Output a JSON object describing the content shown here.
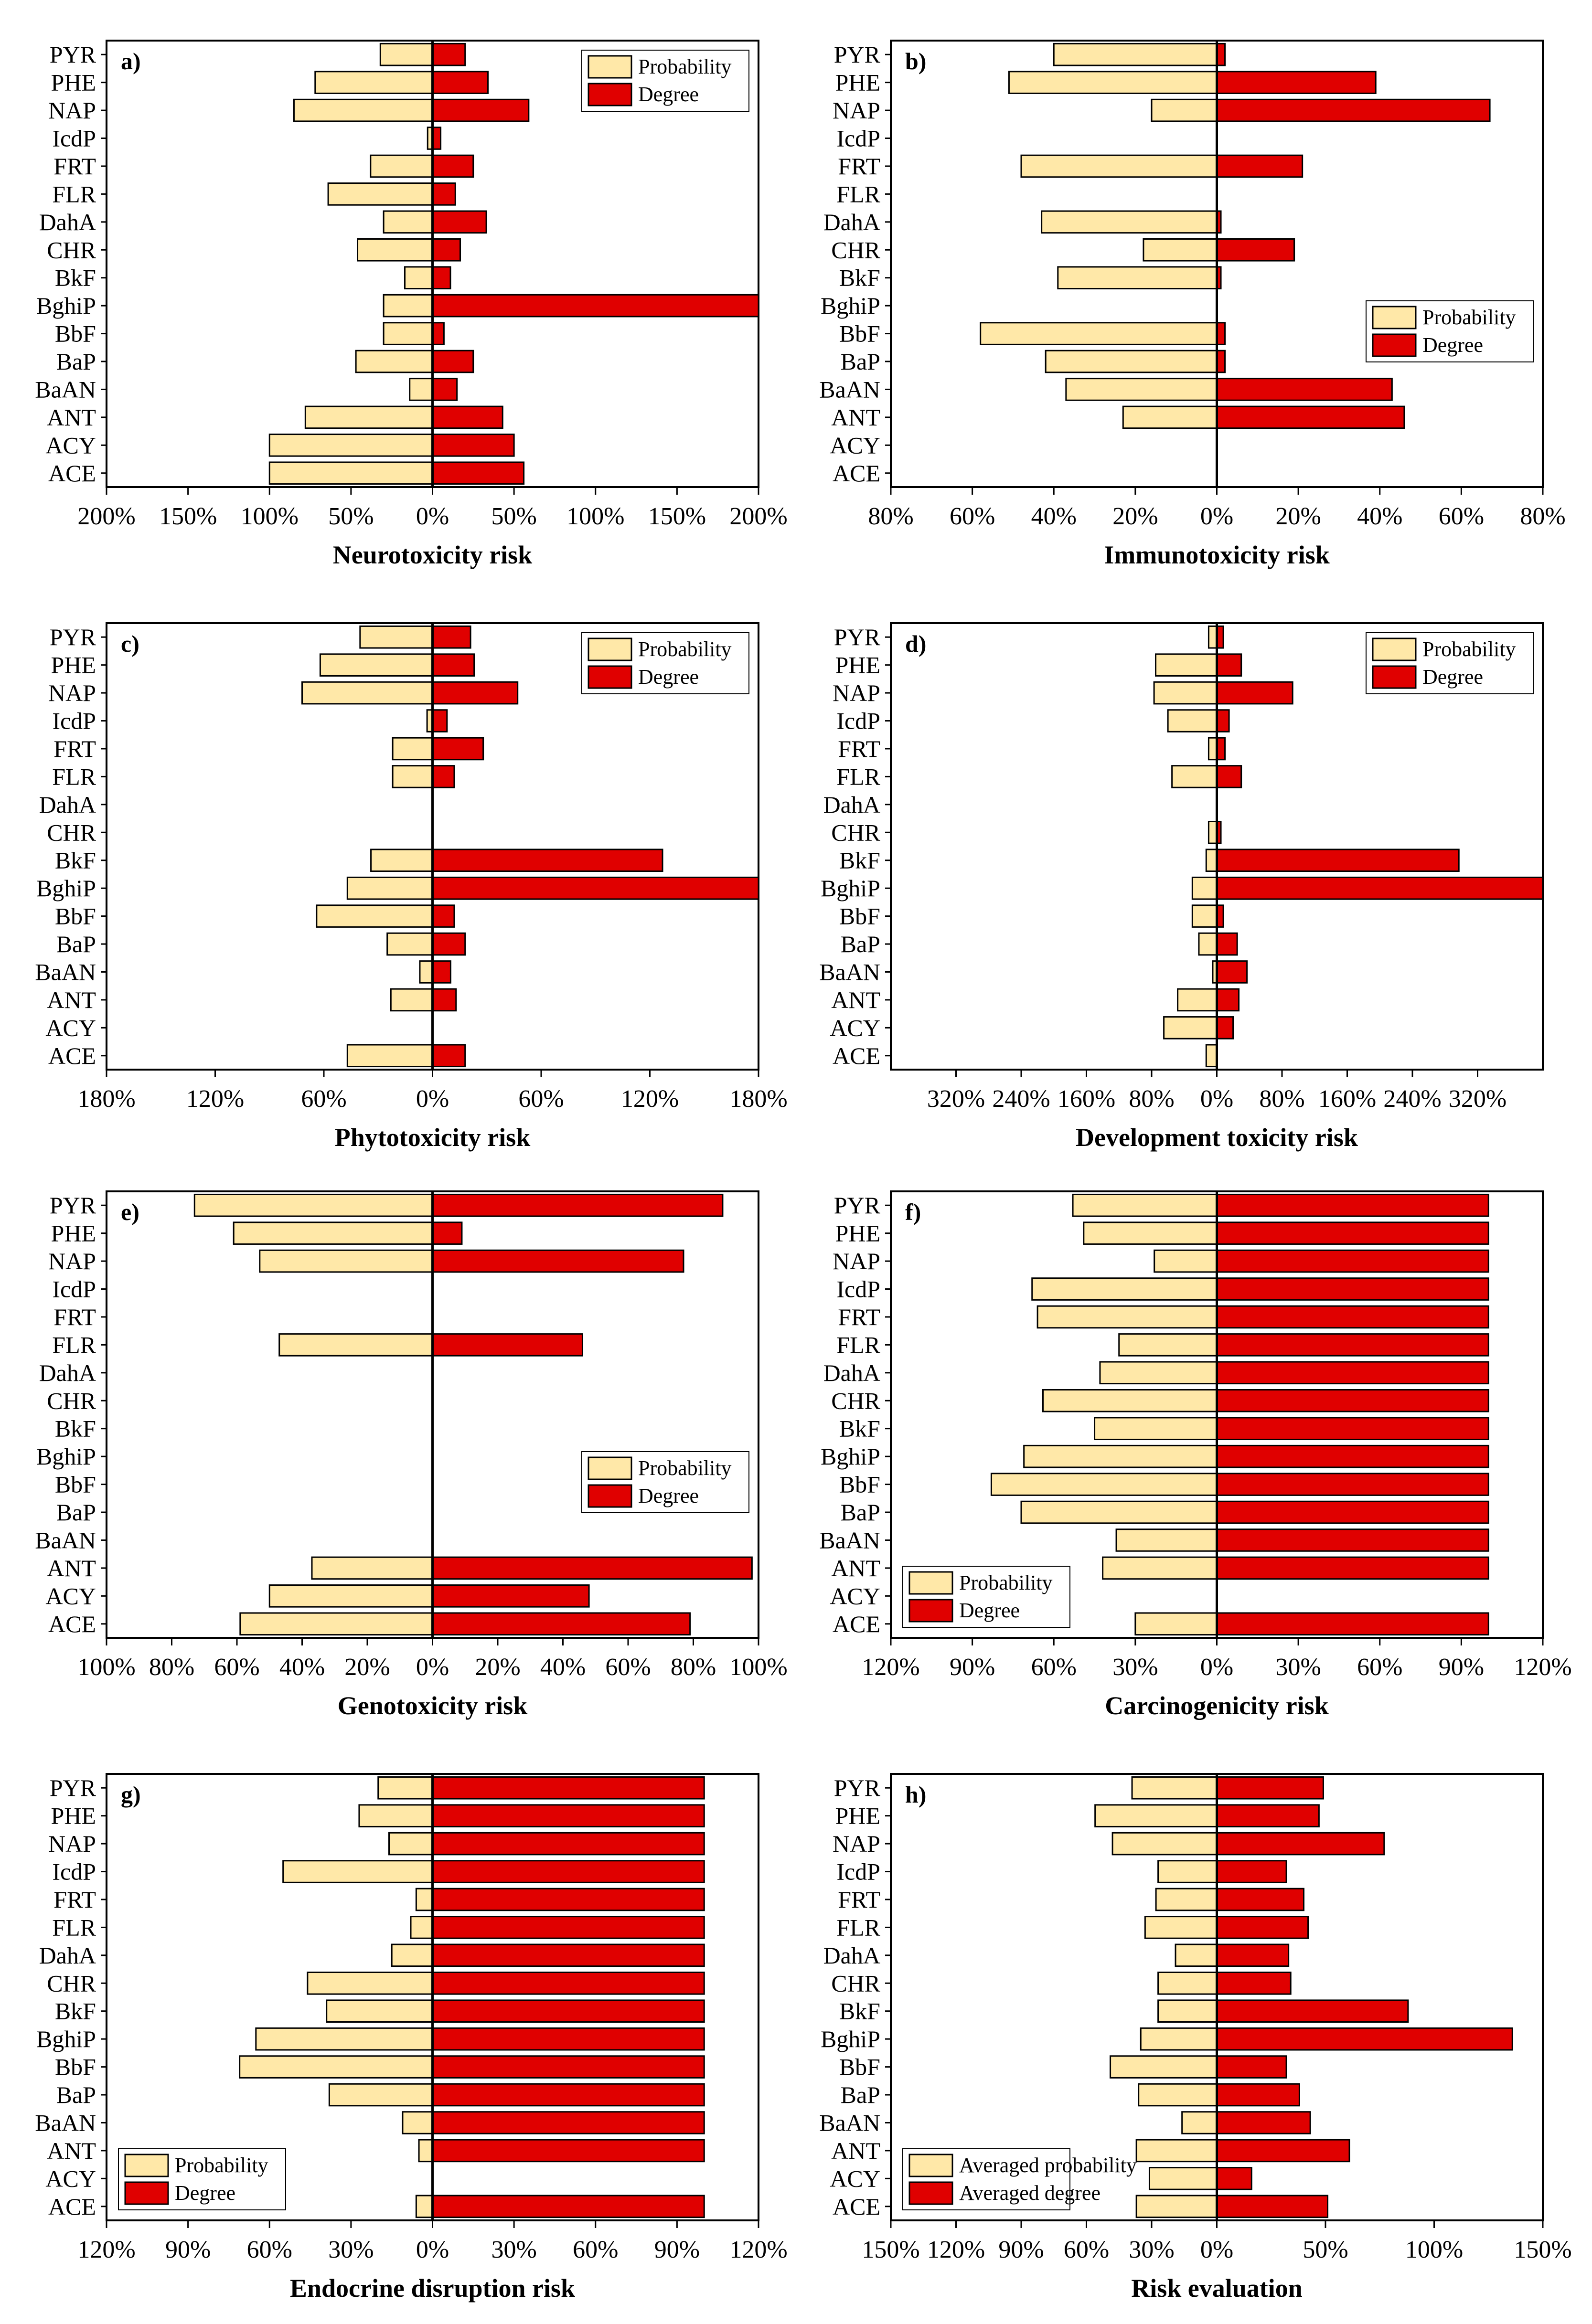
{
  "figure": {
    "background": "#ffffff"
  },
  "colors": {
    "probability": "#FFE8A8",
    "degree": "#E00000",
    "outline": "#000000"
  },
  "chart_data": [
    {
      "id": "a",
      "type": "bar",
      "orientation": "horizontal-diverging",
      "panel_label": "a)",
      "xlabel": "Neurotoxicity risk",
      "xlim": [
        -200,
        200
      ],
      "x_ticks": [
        -200,
        -150,
        -100,
        -50,
        0,
        50,
        100,
        150,
        200
      ],
      "x_tick_labels": [
        "200%",
        "150%",
        "100%",
        "50%",
        "0%",
        "50%",
        "100%",
        "150%",
        "200%"
      ],
      "legend": {
        "position": "top-right",
        "entries": [
          "Probability",
          "Degree"
        ]
      },
      "categories": [
        "PYR",
        "PHE",
        "NAP",
        "IcdP",
        "FRT",
        "FLR",
        "DahA",
        "CHR",
        "BkF",
        "BghiP",
        "BbF",
        "BaP",
        "BaAN",
        "ANT",
        "ACY",
        "ACE"
      ],
      "series": [
        {
          "name": "Probability",
          "values": [
            32,
            72,
            85,
            3,
            38,
            64,
            30,
            46,
            17,
            30,
            30,
            47,
            14,
            78,
            100,
            100
          ]
        },
        {
          "name": "Degree",
          "values": [
            20,
            34,
            59,
            5,
            25,
            14,
            33,
            17,
            11,
            200,
            7,
            25,
            15,
            43,
            50,
            56
          ]
        }
      ]
    },
    {
      "id": "b",
      "type": "bar",
      "orientation": "horizontal-diverging",
      "panel_label": "b)",
      "xlabel": "Immunotoxicity risk",
      "xlim": [
        -80,
        80
      ],
      "x_ticks": [
        -80,
        -60,
        -40,
        -20,
        0,
        20,
        40,
        60,
        80
      ],
      "x_tick_labels": [
        "80%",
        "60%",
        "40%",
        "20%",
        "0%",
        "20%",
        "40%",
        "60%",
        "80%"
      ],
      "legend": {
        "position": "center-right",
        "entries": [
          "Probability",
          "Degree"
        ]
      },
      "categories": [
        "PYR",
        "PHE",
        "NAP",
        "IcdP",
        "FRT",
        "FLR",
        "DahA",
        "CHR",
        "BkF",
        "BghiP",
        "BbF",
        "BaP",
        "BaAN",
        "ANT",
        "ACY",
        "ACE"
      ],
      "series": [
        {
          "name": "Probability",
          "values": [
            40,
            51,
            16,
            0,
            48,
            0,
            43,
            18,
            39,
            0,
            58,
            42,
            37,
            23,
            0,
            0
          ]
        },
        {
          "name": "Degree",
          "values": [
            2,
            39,
            67,
            0,
            21,
            0,
            1,
            19,
            1,
            0,
            2,
            2,
            43,
            46,
            0,
            0
          ]
        }
      ]
    },
    {
      "id": "c",
      "type": "bar",
      "orientation": "horizontal-diverging",
      "panel_label": "c)",
      "xlabel": "Phytotoxicity risk",
      "xlim": [
        -180,
        180
      ],
      "x_ticks": [
        -180,
        -120,
        -60,
        0,
        60,
        120,
        180
      ],
      "x_tick_labels": [
        "180%",
        "120%",
        "60%",
        "0%",
        "60%",
        "120%",
        "180%"
      ],
      "legend": {
        "position": "top-right",
        "entries": [
          "Probability",
          "Degree"
        ]
      },
      "categories": [
        "PYR",
        "PHE",
        "NAP",
        "IcdP",
        "FRT",
        "FLR",
        "DahA",
        "CHR",
        "BkF",
        "BghiP",
        "BbF",
        "BaP",
        "BaAN",
        "ANT",
        "ACY",
        "ACE"
      ],
      "series": [
        {
          "name": "Probability",
          "values": [
            40,
            62,
            72,
            3,
            22,
            22,
            0,
            0,
            34,
            47,
            64,
            25,
            7,
            23,
            0,
            47
          ]
        },
        {
          "name": "Degree",
          "values": [
            21,
            23,
            47,
            8,
            28,
            12,
            0,
            0,
            127,
            180,
            12,
            18,
            10,
            13,
            0,
            18
          ]
        }
      ]
    },
    {
      "id": "d",
      "type": "bar",
      "orientation": "horizontal-diverging",
      "panel_label": "d)",
      "xlabel": "Development toxicity risk",
      "xlim": [
        -400,
        400
      ],
      "x_ticks": [
        -320,
        -240,
        -160,
        -80,
        0,
        80,
        160,
        240,
        320
      ],
      "x_tick_labels": [
        "320%",
        "240%",
        "160%",
        "80%",
        "0%",
        "80%",
        "160%",
        "240%",
        "320%"
      ],
      "legend": {
        "position": "top-right",
        "entries": [
          "Probability",
          "Degree"
        ]
      },
      "categories": [
        "PYR",
        "PHE",
        "NAP",
        "IcdP",
        "FRT",
        "FLR",
        "DahA",
        "CHR",
        "BkF",
        "BghiP",
        "BbF",
        "BaP",
        "BaAN",
        "ANT",
        "ACY",
        "ACE"
      ],
      "series": [
        {
          "name": "Probability",
          "values": [
            10,
            75,
            77,
            60,
            10,
            55,
            0,
            10,
            13,
            30,
            30,
            22,
            5,
            48,
            65,
            13
          ]
        },
        {
          "name": "Degree",
          "values": [
            8,
            30,
            93,
            15,
            10,
            30,
            0,
            5,
            297,
            400,
            8,
            25,
            37,
            27,
            20,
            0
          ]
        }
      ]
    },
    {
      "id": "e",
      "type": "bar",
      "orientation": "horizontal-diverging",
      "panel_label": "e)",
      "xlabel": "Genotoxicity risk",
      "xlim": [
        -100,
        100
      ],
      "x_ticks": [
        -100,
        -80,
        -60,
        -40,
        -20,
        0,
        20,
        40,
        60,
        80,
        100
      ],
      "x_tick_labels": [
        "100%",
        "80%",
        "60%",
        "40%",
        "20%",
        "0%",
        "20%",
        "40%",
        "60%",
        "80%",
        "100%"
      ],
      "legend": {
        "position": "center-right",
        "entries": [
          "Probability",
          "Degree"
        ]
      },
      "categories": [
        "PYR",
        "PHE",
        "NAP",
        "IcdP",
        "FRT",
        "FLR",
        "DahA",
        "CHR",
        "BkF",
        "BghiP",
        "BbF",
        "BaP",
        "BaAN",
        "ANT",
        "ACY",
        "ACE"
      ],
      "series": [
        {
          "name": "Probability",
          "values": [
            73,
            61,
            53,
            0,
            0,
            47,
            0,
            0,
            0,
            0,
            0,
            0,
            0,
            37,
            50,
            59
          ]
        },
        {
          "name": "Degree",
          "values": [
            89,
            9,
            77,
            0,
            0,
            46,
            0,
            0,
            0,
            0,
            0,
            0,
            0,
            98,
            48,
            79
          ]
        }
      ]
    },
    {
      "id": "f",
      "type": "bar",
      "orientation": "horizontal-diverging",
      "panel_label": "f)",
      "xlabel": "Carcinogenicity risk",
      "xlim": [
        -120,
        120
      ],
      "x_ticks": [
        -120,
        -90,
        -60,
        -30,
        0,
        30,
        60,
        90,
        120
      ],
      "x_tick_labels": [
        "120%",
        "90%",
        "60%",
        "30%",
        "0%",
        "30%",
        "60%",
        "90%",
        "120%"
      ],
      "legend": {
        "position": "bottom-left",
        "entries": [
          "Probability",
          "Degree"
        ]
      },
      "categories": [
        "PYR",
        "PHE",
        "NAP",
        "IcdP",
        "FRT",
        "FLR",
        "DahA",
        "CHR",
        "BkF",
        "BghiP",
        "BbF",
        "BaP",
        "BaAN",
        "ANT",
        "ACY",
        "ACE"
      ],
      "series": [
        {
          "name": "Probability",
          "values": [
            53,
            49,
            23,
            68,
            66,
            36,
            43,
            64,
            45,
            71,
            83,
            72,
            37,
            42,
            0,
            30
          ]
        },
        {
          "name": "Degree",
          "values": [
            100,
            100,
            100,
            100,
            100,
            100,
            100,
            100,
            100,
            100,
            100,
            100,
            100,
            100,
            0,
            100
          ]
        }
      ]
    },
    {
      "id": "g",
      "type": "bar",
      "orientation": "horizontal-diverging",
      "panel_label": "g)",
      "xlabel": "Endocrine disruption risk",
      "xlim": [
        -120,
        120
      ],
      "x_ticks": [
        -120,
        -90,
        -60,
        -30,
        0,
        30,
        60,
        90,
        120
      ],
      "x_tick_labels": [
        "120%",
        "90%",
        "60%",
        "30%",
        "0%",
        "30%",
        "60%",
        "90%",
        "120%"
      ],
      "legend": {
        "position": "bottom-left",
        "entries": [
          "Probability",
          "Degree"
        ]
      },
      "categories": [
        "PYR",
        "PHE",
        "NAP",
        "IcdP",
        "FRT",
        "FLR",
        "DahA",
        "CHR",
        "BkF",
        "BghiP",
        "BbF",
        "BaP",
        "BaAN",
        "ANT",
        "ACY",
        "ACE"
      ],
      "series": [
        {
          "name": "Probability",
          "values": [
            20,
            27,
            16,
            55,
            6,
            8,
            15,
            46,
            39,
            65,
            71,
            38,
            11,
            5,
            0,
            6
          ]
        },
        {
          "name": "Degree",
          "values": [
            100,
            100,
            100,
            100,
            100,
            100,
            100,
            100,
            100,
            100,
            100,
            100,
            100,
            100,
            0,
            100
          ]
        }
      ]
    },
    {
      "id": "h",
      "type": "bar",
      "orientation": "horizontal-diverging",
      "panel_label": "h)",
      "xlabel": "Risk evaluation",
      "xlim": [
        -150,
        150
      ],
      "x_ticks": [
        -150,
        -120,
        -90,
        -60,
        -30,
        0,
        50,
        100,
        150
      ],
      "x_tick_labels": [
        "150%",
        "120%",
        "90%",
        "60%",
        "30%",
        "0%",
        "50%",
        "100%",
        "150%"
      ],
      "legend": {
        "position": "bottom-left",
        "entries": [
          "Averaged probability",
          "Averaged degree"
        ]
      },
      "categories": [
        "PYR",
        "PHE",
        "NAP",
        "IcdP",
        "FRT",
        "FLR",
        "DahA",
        "CHR",
        "BkF",
        "BghiP",
        "BbF",
        "BaP",
        "BaAN",
        "ANT",
        "ACY",
        "ACE"
      ],
      "series": [
        {
          "name": "Averaged probability",
          "values": [
            39,
            56,
            48,
            27,
            28,
            33,
            19,
            27,
            27,
            35,
            49,
            36,
            16,
            37,
            31,
            37
          ]
        },
        {
          "name": "Averaged degree",
          "values": [
            49,
            47,
            77,
            32,
            40,
            42,
            33,
            34,
            88,
            136,
            32,
            38,
            43,
            61,
            16,
            51
          ]
        }
      ]
    }
  ]
}
